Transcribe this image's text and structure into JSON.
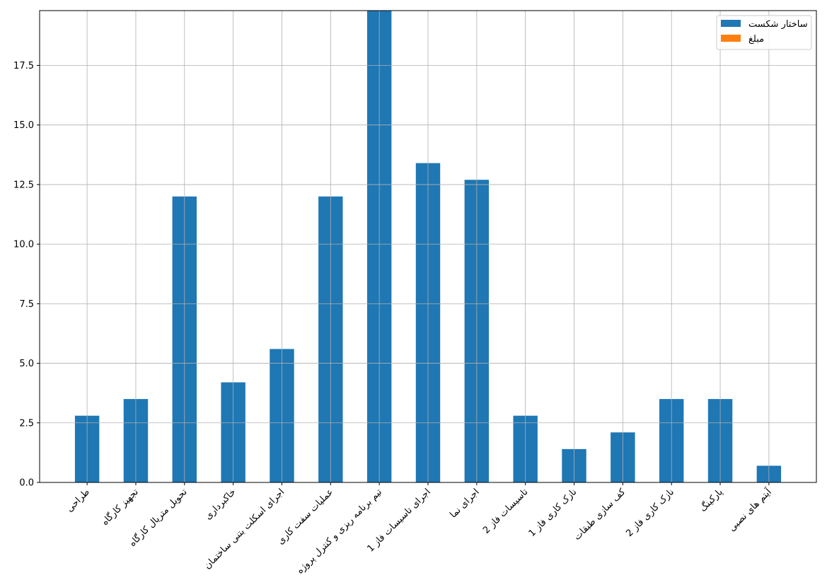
{
  "chart_data": {
    "type": "bar",
    "categories": [
      "طراحی",
      "تجهیز کارگاه",
      "تحویل متریال کارگاه",
      "خاکبرداری",
      "اجرای اسکلت بتنی ساختمان",
      "عملیات سفت کاری",
      "تیم برنامه ریزی و کنترل پروژه",
      "اجرای تاسیسات فاز 1",
      "اجرای نما",
      "تاسیسات فاز 2",
      "نازک کاری فاز 1",
      "کف سازی طبقات",
      "نازک کاری فاز 2",
      "پارکینگ",
      "آیتم های نصبی"
    ],
    "series": [
      {
        "name": "ساختار شکست",
        "color": "#1f77b4",
        "values": [
          2.8,
          3.5,
          12,
          4.2,
          5.6,
          12,
          19.8,
          13.4,
          12.7,
          2.8,
          1.4,
          2.1,
          3.5,
          3.5,
          0.7
        ]
      },
      {
        "name": "مبلغ",
        "color": "#ff7f0e",
        "values": [
          0,
          0,
          0,
          0,
          0,
          0,
          0,
          0,
          0,
          0,
          0,
          0,
          0,
          0,
          0
        ]
      }
    ],
    "ylim": [
      0,
      19.8
    ],
    "yticks": [
      {
        "value": 0,
        "label": "0.0"
      },
      2.5,
      {
        "value": 5,
        "label": "5.0"
      },
      7.5,
      {
        "value": 10,
        "label": "10.0"
      },
      12.5,
      {
        "value": 15,
        "label": "15.0"
      },
      17.5
    ],
    "grid": true,
    "legend": "upper right"
  }
}
